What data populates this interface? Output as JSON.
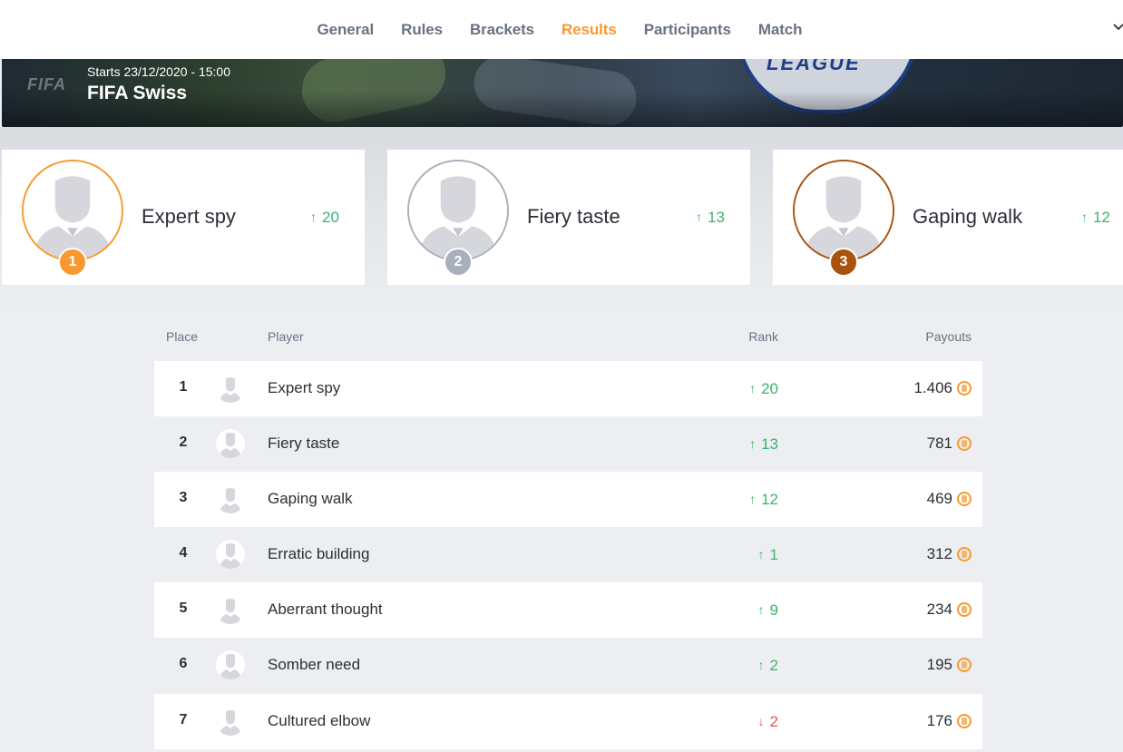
{
  "nav": {
    "items": [
      "General",
      "Rules",
      "Brackets",
      "Results",
      "Participants",
      "Match"
    ],
    "active": "Results"
  },
  "hero": {
    "logo_text": "FIFA",
    "badge_text": "LEAGUE",
    "start": "Starts 23/12/2020 - 15:00",
    "title": "FIFA Swiss"
  },
  "podium": [
    {
      "place": "1",
      "name": "Expert spy",
      "rank_change": "20",
      "direction": "up",
      "color": "#f7992e"
    },
    {
      "place": "2",
      "name": "Fiery taste",
      "rank_change": "13",
      "direction": "up",
      "color": "#a9b0bc"
    },
    {
      "place": "3",
      "name": "Gaping walk",
      "rank_change": "12",
      "direction": "up",
      "color": "#a8530f"
    }
  ],
  "table": {
    "headers": {
      "place": "Place",
      "player": "Player",
      "rank": "Rank",
      "payouts": "Payouts"
    },
    "rows": [
      {
        "place": "1",
        "player": "Expert spy",
        "rank_change": "20",
        "direction": "up",
        "payout": "1.406"
      },
      {
        "place": "2",
        "player": "Fiery taste",
        "rank_change": "13",
        "direction": "up",
        "payout": "781"
      },
      {
        "place": "3",
        "player": "Gaping walk",
        "rank_change": "12",
        "direction": "up",
        "payout": "469"
      },
      {
        "place": "4",
        "player": "Erratic building",
        "rank_change": "1",
        "direction": "up",
        "payout": "312"
      },
      {
        "place": "5",
        "player": "Aberrant thought",
        "rank_change": "9",
        "direction": "up",
        "payout": "234"
      },
      {
        "place": "6",
        "player": "Somber need",
        "rank_change": "2",
        "direction": "up",
        "payout": "195"
      },
      {
        "place": "7",
        "player": "Cultured elbow",
        "rank_change": "2",
        "direction": "down",
        "payout": "176"
      }
    ]
  },
  "icons": {
    "up": "↑",
    "down": "↓",
    "avatar": "user-silhouette-icon",
    "coin": "coin-icon",
    "chevron": "chevron-down-icon"
  },
  "colors": {
    "accent": "#f7992e",
    "positive": "#3fb36e",
    "negative": "#e05454"
  }
}
